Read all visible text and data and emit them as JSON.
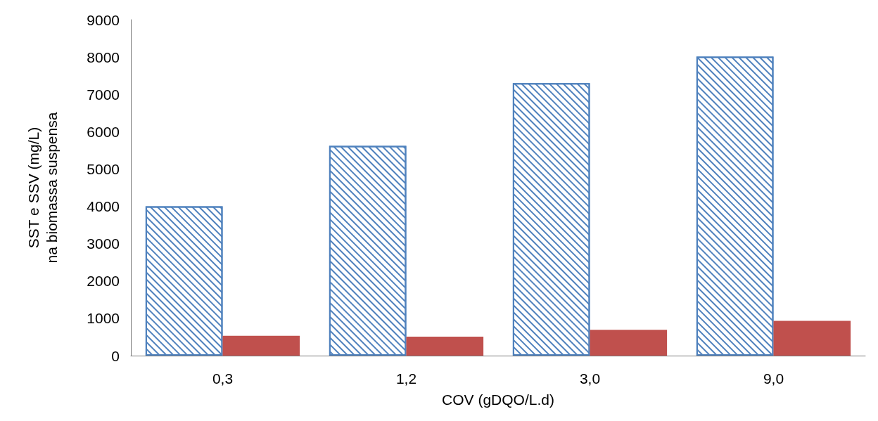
{
  "chart_data": {
    "type": "bar",
    "xlabel": "COV (gDQO/L.d)",
    "ylabel": "SST e SSV (mg/L)\nna biomassa suspensa",
    "categories": [
      "0,3",
      "1,2",
      "3,0",
      "9,0"
    ],
    "series": [
      {
        "color": "#4f81bd",
        "values": [
          4000,
          5620,
          7300,
          8010
        ]
      },
      {
        "color": "#c0504d",
        "values": [
          530,
          510,
          690,
          930
        ]
      }
    ],
    "ylim": [
      0,
      9000
    ],
    "yticks": [
      0,
      1000,
      2000,
      3000,
      4000,
      5000,
      6000,
      7000,
      8000,
      9000
    ],
    "grid": false
  }
}
